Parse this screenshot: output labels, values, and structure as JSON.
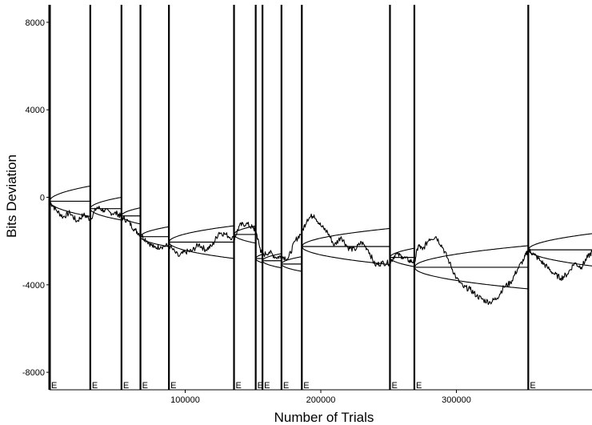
{
  "chart_data": {
    "type": "line",
    "title": "",
    "xlabel": "Number of Trials",
    "ylabel": "Bits Deviation",
    "xlim": [
      0,
      400000
    ],
    "ylim": [
      -8800,
      8800
    ],
    "xticks": [
      100000,
      200000,
      300000
    ],
    "yticks": [
      8000,
      4000,
      0,
      -4000,
      -8000
    ],
    "x_tick_labels": [
      "100000",
      "200000",
      "300000"
    ],
    "y_tick_labels": [
      "8000",
      "4000",
      "0",
      "-4000",
      "-8000"
    ],
    "grid": false,
    "legend": "none",
    "colors": {
      "line": "#000000",
      "background": "#ffffff"
    },
    "segment_marker_label": "E",
    "segments": [
      {
        "start": 0,
        "end": 30000,
        "baseline": -180,
        "envelope_scale": 2.05
      },
      {
        "start": 30000,
        "end": 53000,
        "baseline": -520,
        "envelope_scale": 1.75
      },
      {
        "start": 53000,
        "end": 67000,
        "baseline": -850,
        "envelope_scale": 1.6
      },
      {
        "start": 67000,
        "end": 88000,
        "baseline": -1800,
        "envelope_scale": 1.6
      },
      {
        "start": 88000,
        "end": 136000,
        "baseline": -2050,
        "envelope_scale": 1.74
      },
      {
        "start": 136000,
        "end": 152000,
        "baseline": -1700,
        "envelope_scale": 1.6
      },
      {
        "start": 152000,
        "end": 157000,
        "baseline": -2800,
        "envelope_scale": 1.4
      },
      {
        "start": 157000,
        "end": 171000,
        "baseline": -2900,
        "envelope_scale": 1.4
      },
      {
        "start": 171000,
        "end": 186000,
        "baseline": -3050,
        "envelope_scale": 1.4
      },
      {
        "start": 186000,
        "end": 251000,
        "baseline": -2250,
        "envelope_scale": 1.65
      },
      {
        "start": 251000,
        "end": 269000,
        "baseline": -2750,
        "envelope_scale": 1.6
      },
      {
        "start": 269000,
        "end": 353000,
        "baseline": -3200,
        "envelope_scale": 1.74
      },
      {
        "start": 353000,
        "end": 400000,
        "baseline": -2400,
        "envelope_scale": 1.74
      }
    ],
    "deviation_trace": {
      "x": [
        0,
        5000,
        10000,
        15000,
        20000,
        25000,
        30000,
        35000,
        40000,
        45000,
        50000,
        53000,
        58000,
        63000,
        67000,
        72000,
        77000,
        82000,
        88000,
        95000,
        100000,
        105000,
        110000,
        115000,
        120000,
        125000,
        130000,
        136000,
        140000,
        145000,
        150000,
        152000,
        155000,
        157000,
        162000,
        167000,
        171000,
        176000,
        181000,
        186000,
        190000,
        195000,
        200000,
        205000,
        210000,
        215000,
        220000,
        225000,
        230000,
        235000,
        240000,
        245000,
        251000,
        255000,
        260000,
        265000,
        269000,
        272000,
        275000,
        280000,
        285000,
        290000,
        295000,
        300000,
        305000,
        310000,
        315000,
        320000,
        325000,
        330000,
        335000,
        340000,
        345000,
        350000,
        353000,
        357000,
        362000,
        367000,
        372000,
        377000,
        382000,
        387000,
        392000,
        396000,
        400000
      ],
      "y": [
        -180,
        -600,
        -900,
        -700,
        -1100,
        -800,
        -1000,
        -450,
        -600,
        -700,
        -750,
        -900,
        -1100,
        -1500,
        -1700,
        -2000,
        -2300,
        -2250,
        -2200,
        -2700,
        -2500,
        -2450,
        -2150,
        -2400,
        -2200,
        -1600,
        -1700,
        -1900,
        -1300,
        -1200,
        -1400,
        -1500,
        -2300,
        -2650,
        -2500,
        -2750,
        -2700,
        -2800,
        -2000,
        -1600,
        -1000,
        -800,
        -1300,
        -1600,
        -2200,
        -1800,
        -2300,
        -2400,
        -2050,
        -2400,
        -3100,
        -3000,
        -3000,
        -2600,
        -2700,
        -2900,
        -2950,
        -2200,
        -2400,
        -1900,
        -1800,
        -2300,
        -3000,
        -3700,
        -4100,
        -4200,
        -4500,
        -4700,
        -4800,
        -4600,
        -4100,
        -3900,
        -3300,
        -2800,
        -2400,
        -2600,
        -2900,
        -3200,
        -3500,
        -3700,
        -3500,
        -3000,
        -3200,
        -2800,
        -2500
      ]
    }
  }
}
